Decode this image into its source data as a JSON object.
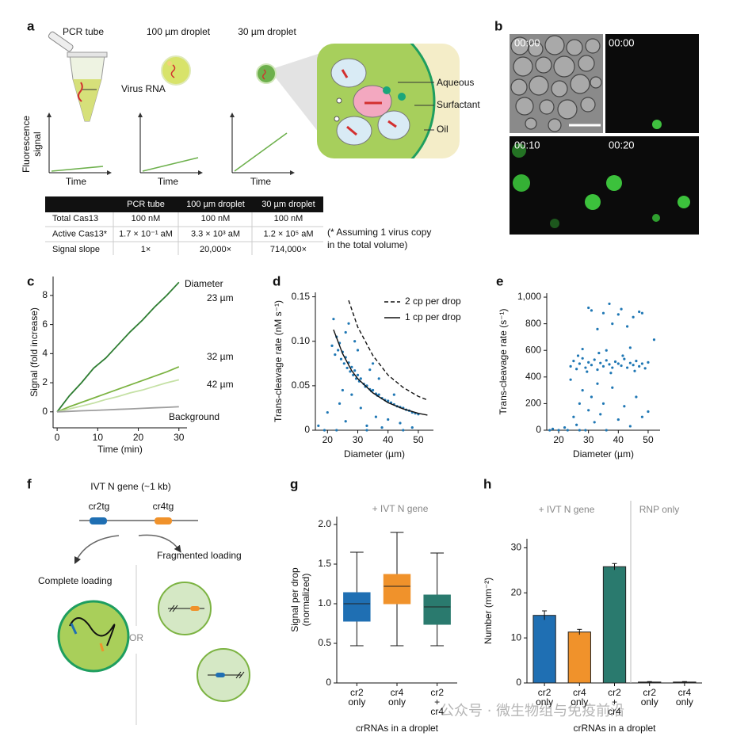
{
  "panel_labels": [
    "a",
    "b",
    "c",
    "d",
    "e",
    "f",
    "g",
    "h"
  ],
  "panel_a": {
    "titles": [
      "PCR tube",
      "100 µm droplet",
      "30 µm droplet"
    ],
    "virus_label": "Virus RNA",
    "y_label": [
      "Fluorescence",
      "signal"
    ],
    "x_label": "Time",
    "droplet_labels": [
      "Aqueous",
      "Surfactant",
      "Oil"
    ],
    "table": {
      "header": [
        "PCR tube",
        "100 µm droplet",
        "30 µm droplet"
      ],
      "rows": [
        [
          "Total Cas13",
          "100 nM",
          "100 nM",
          "100 nM"
        ],
        [
          "Active Cas13*",
          "1.7 × 10⁻¹ aM",
          "3.3 × 10³ aM",
          "1.2 × 10⁵ aM"
        ],
        [
          "Signal slope",
          "1×",
          "20,000×",
          "714,000×"
        ]
      ]
    },
    "footnote": [
      "(* Assuming 1 virus copy",
      "in the total volume)"
    ]
  },
  "panel_b": {
    "timestamps": [
      "00:00",
      "00:00",
      "00:10",
      "00:20"
    ]
  },
  "panel_f": {
    "title": "IVT N gene (~1 kb)",
    "targets": [
      "cr2tg",
      "cr4tg"
    ],
    "fragmented": "Fragmented loading",
    "complete": "Complete loading",
    "or": "OR"
  },
  "chart_data": [
    {
      "type": "line",
      "annotation": "Diameter",
      "x": [
        0,
        3,
        6,
        9,
        12,
        15,
        18,
        21,
        24,
        27,
        30
      ],
      "series": [
        {
          "name": "23 µm",
          "color": "#2e7d32",
          "values": [
            0,
            1.1,
            2.0,
            3.0,
            3.7,
            4.6,
            5.5,
            6.3,
            7.2,
            8.0,
            8.9
          ]
        },
        {
          "name": "32 µm",
          "color": "#7cb342",
          "values": [
            0,
            0.35,
            0.65,
            0.95,
            1.25,
            1.55,
            1.85,
            2.15,
            2.45,
            2.75,
            3.1
          ]
        },
        {
          "name": "42 µm",
          "color": "#c5e1a5",
          "values": [
            0,
            0.2,
            0.4,
            0.6,
            0.85,
            1.05,
            1.3,
            1.5,
            1.75,
            2.0,
            2.2
          ]
        },
        {
          "name": "Background",
          "color": "#9e9e9e",
          "values": [
            0,
            0.03,
            0.07,
            0.1,
            0.13,
            0.17,
            0.2,
            0.24,
            0.28,
            0.31,
            0.35
          ]
        }
      ],
      "xlim": [
        -1,
        32
      ],
      "ylim": [
        -1.1,
        9.3
      ],
      "xticks": [
        0,
        10,
        20,
        30
      ],
      "yticks": [
        0,
        2,
        4,
        6,
        8
      ],
      "x_label": "Time (min)",
      "y_label": "Signal (fold increase)"
    },
    {
      "type": "scatter",
      "color": "#1f77b4",
      "x": [
        21.5,
        22,
        22.5,
        23,
        23.5,
        24,
        24.5,
        25,
        25.5,
        26,
        26.5,
        27,
        27.5,
        28,
        28.5,
        29,
        29.5,
        30,
        30.5,
        31,
        32,
        32.5,
        33,
        34,
        34.5,
        35,
        36,
        36.5,
        37,
        38,
        39,
        40,
        41,
        42,
        43,
        44,
        45,
        46,
        47,
        48,
        49,
        50,
        20,
        24,
        26,
        28,
        31,
        33,
        36,
        38,
        40,
        44,
        27,
        29,
        26,
        30,
        34,
        37,
        42,
        48,
        19,
        23,
        33,
        45,
        17,
        25,
        35
      ],
      "values": [
        0.095,
        0.125,
        0.085,
        0.105,
        0.09,
        0.098,
        0.08,
        0.088,
        0.075,
        0.082,
        0.07,
        0.076,
        0.066,
        0.071,
        0.062,
        0.067,
        0.058,
        0.062,
        0.055,
        0.058,
        0.052,
        0.049,
        0.05,
        0.046,
        0.044,
        0.045,
        0.041,
        0.039,
        0.04,
        0.036,
        0.034,
        0.033,
        0.031,
        0.029,
        0.027,
        0.026,
        0.025,
        0.023,
        0.022,
        0.02,
        0.019,
        0.018,
        0.02,
        0.03,
        0.01,
        0.04,
        0.025,
        0.005,
        0.015,
        0.003,
        0.012,
        0.008,
        0.12,
        0.1,
        0.11,
        0.09,
        0.068,
        0.058,
        0.04,
        0.003,
        0,
        0,
        0,
        0,
        0.005,
        0.045,
        0.075
      ],
      "fits": [
        {
          "name": "2 cp per drop",
          "dashed": true,
          "x": [
            27,
            30,
            35,
            40,
            45,
            50,
            53
          ],
          "values": [
            0.146,
            0.116,
            0.084,
            0.062,
            0.048,
            0.038,
            0.034
          ]
        },
        {
          "name": "1 cp per drop",
          "dashed": false,
          "x": [
            22,
            25,
            28,
            30,
            35,
            40,
            45,
            50,
            53
          ],
          "values": [
            0.113,
            0.086,
            0.067,
            0.058,
            0.042,
            0.031,
            0.024,
            0.019,
            0.017
          ]
        }
      ],
      "legend": "upper right",
      "xlim": [
        16,
        55
      ],
      "ylim": [
        0,
        0.155
      ],
      "xticks": [
        20,
        30,
        40,
        50
      ],
      "yticks": [
        0,
        0.05,
        {
          "value": 0.1,
          "label": "0.10"
        },
        0.15
      ],
      "x_label": "Diameter (µm)",
      "y_label": "Trans-cleavage rate (nM s⁻¹)"
    },
    {
      "type": "scatter",
      "color": "#1f77b4",
      "x": [
        24,
        25,
        26,
        27,
        28,
        29,
        30,
        31,
        32,
        33,
        34,
        35,
        36,
        37,
        38,
        39,
        40,
        41,
        42,
        43,
        44,
        45,
        46,
        47,
        48,
        49,
        50,
        26.5,
        29.5,
        33.5,
        37.5,
        41.5,
        45.5,
        28,
        36,
        44,
        30,
        31,
        33,
        35,
        37,
        38,
        40,
        41,
        43,
        45,
        47,
        48,
        52,
        17,
        18,
        20,
        22,
        24,
        25,
        26,
        27,
        28,
        29,
        30,
        31,
        32,
        33,
        34,
        35,
        36,
        38,
        40,
        42,
        44,
        46,
        48,
        50,
        23,
        27
      ],
      "values": [
        480,
        520,
        460,
        500,
        540,
        470,
        510,
        490,
        530,
        455,
        505,
        480,
        525,
        495,
        470,
        515,
        500,
        485,
        535,
        470,
        505,
        490,
        520,
        480,
        500,
        465,
        510,
        560,
        440,
        580,
        430,
        560,
        445,
        610,
        600,
        620,
        920,
        900,
        760,
        880,
        950,
        800,
        870,
        910,
        780,
        850,
        890,
        880,
        680,
        0,
        10,
        0,
        20,
        380,
        100,
        40,
        200,
        300,
        0,
        150,
        250,
        60,
        350,
        120,
        200,
        0,
        320,
        80,
        180,
        30,
        250,
        100,
        140,
        0,
        0
      ],
      "xlim": [
        16,
        54
      ],
      "ylim": [
        0,
        1030
      ],
      "xticks": [
        20,
        30,
        40,
        50
      ],
      "yticks": [
        0,
        200,
        400,
        600,
        800,
        {
          "value": 1000,
          "label": "1,000"
        }
      ],
      "x_label": "Diameter (µm)",
      "y_label": "Trans-cleavage rate (s⁻¹)"
    },
    {
      "type": "box",
      "annotation": "+ IVT N gene",
      "categories": [
        [
          "cr2",
          "only"
        ],
        [
          "cr4",
          "only"
        ],
        [
          "cr2",
          "+",
          "cr4"
        ]
      ],
      "colors": [
        "#1f6fb3",
        "#f0922b",
        "#2a7a6e"
      ],
      "min": [
        0.47,
        0.47,
        0.47
      ],
      "q1": [
        0.78,
        1.0,
        0.74
      ],
      "median": [
        1.0,
        1.22,
        0.96
      ],
      "q3": [
        1.14,
        1.37,
        1.11
      ],
      "max": [
        1.65,
        1.9,
        1.64
      ],
      "ylim": [
        0,
        2.1
      ],
      "yticks": [
        0,
        0.5,
        {
          "value": 1,
          "label": "1.0"
        },
        1.5,
        {
          "value": 2,
          "label": "2.0"
        }
      ],
      "x_label": "crRNAs in a droplet",
      "y_label": [
        "Signal per drop",
        "(normalized)"
      ]
    },
    {
      "type": "bar",
      "annotations": [
        "+ IVT N gene",
        "RNP only"
      ],
      "categories": [
        [
          "cr2",
          "only"
        ],
        [
          "cr4",
          "only"
        ],
        [
          "cr2",
          "+",
          "cr4"
        ],
        [
          "cr2",
          "only"
        ],
        [
          "cr4",
          "only"
        ]
      ],
      "colors": [
        "#1f6fb3",
        "#f0922b",
        "#2a7a6e",
        "#333333",
        "#333333"
      ],
      "values": [
        15,
        11.3,
        25.8,
        0.2,
        0.2
      ],
      "errors": [
        1,
        0.6,
        0.7,
        0.1,
        0.1
      ],
      "ylim": [
        0,
        32
      ],
      "yticks": [
        0,
        10,
        20,
        30
      ],
      "x_label": "crRNAs in a droplet",
      "y_label": "Number (mm⁻²)"
    }
  ],
  "watermark": "公众号 · 微生物组与免疫前沿"
}
